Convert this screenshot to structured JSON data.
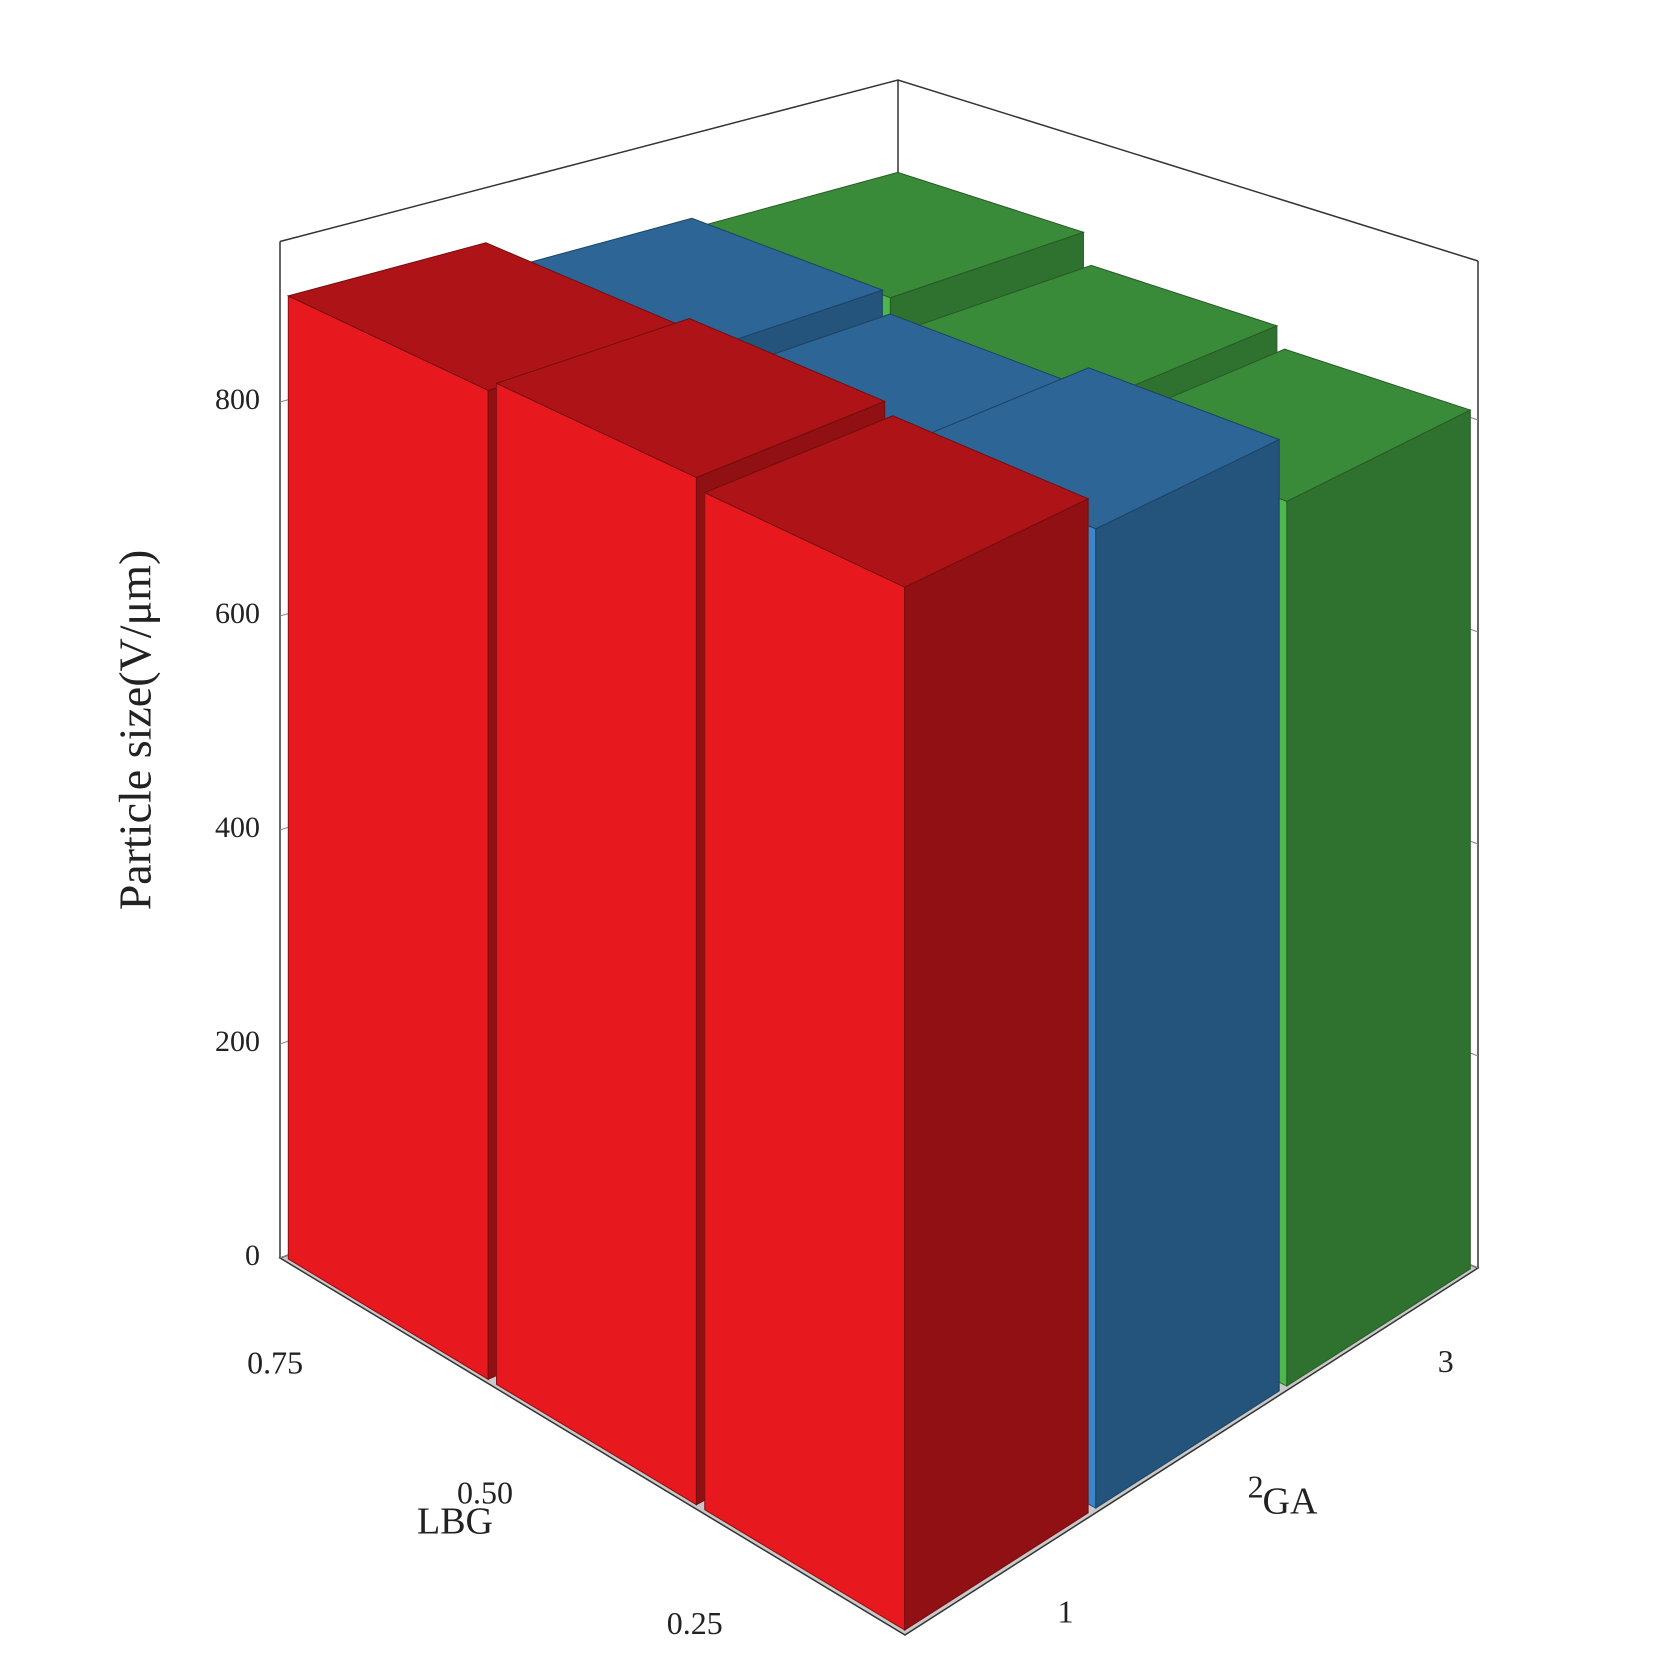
{
  "chart_data": {
    "type": "bar3d",
    "ylabel": "Particle size(V/μm)",
    "xlabel": "LBG",
    "zlabel": "GA",
    "categories": [
      "0.75",
      "0.50",
      "0.25"
    ],
    "z_categories": [
      "1",
      "2",
      "3"
    ],
    "series": [
      {
        "color": "#e8191e",
        "values": [
          900,
          910,
          900
        ]
      },
      {
        "color": "#3a86c8",
        "values": [
          870,
          850,
          870
        ]
      },
      {
        "color": "#4cb84c",
        "values": [
          860,
          830,
          810
        ]
      }
    ],
    "ylim": [
      0,
      950
    ],
    "yticks": [
      0,
      200,
      400,
      600,
      800
    ],
    "grid": true
  }
}
